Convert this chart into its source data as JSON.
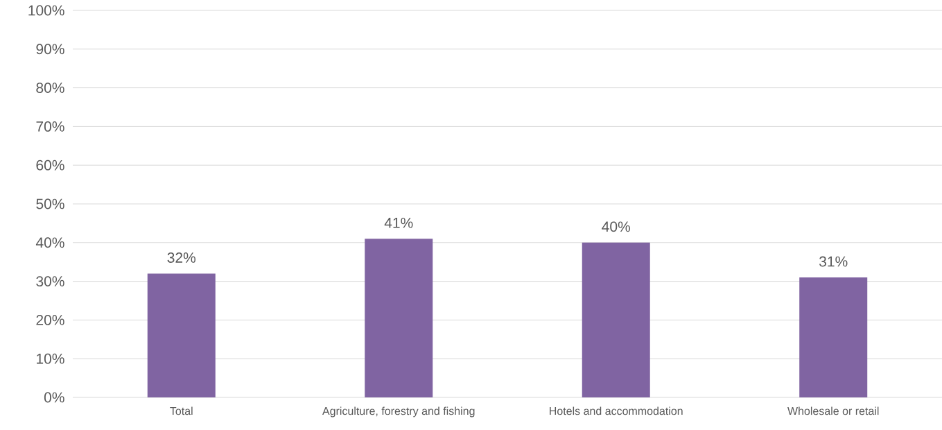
{
  "chart_data": {
    "type": "bar",
    "categories": [
      "Total",
      "Agriculture, forestry and fishing",
      "Hotels and accommodation",
      "Wholesale or retail"
    ],
    "values": [
      32,
      41,
      40,
      31
    ],
    "value_labels": [
      "32%",
      "41%",
      "40%",
      "31%"
    ],
    "color": "#8064a2",
    "ylim": [
      0,
      100
    ],
    "yticks": [
      {
        "value": 0,
        "label": "0%"
      },
      {
        "value": 10,
        "label": "10%"
      },
      {
        "value": 20,
        "label": "20%"
      },
      {
        "value": 30,
        "label": "30%"
      },
      {
        "value": 40,
        "label": "40%"
      },
      {
        "value": 50,
        "label": "50%"
      },
      {
        "value": 60,
        "label": "60%"
      },
      {
        "value": 70,
        "label": "70%"
      },
      {
        "value": 80,
        "label": "80%"
      },
      {
        "value": 90,
        "label": "90%"
      },
      {
        "value": 100,
        "label": "100%"
      }
    ],
    "grid": "y"
  }
}
